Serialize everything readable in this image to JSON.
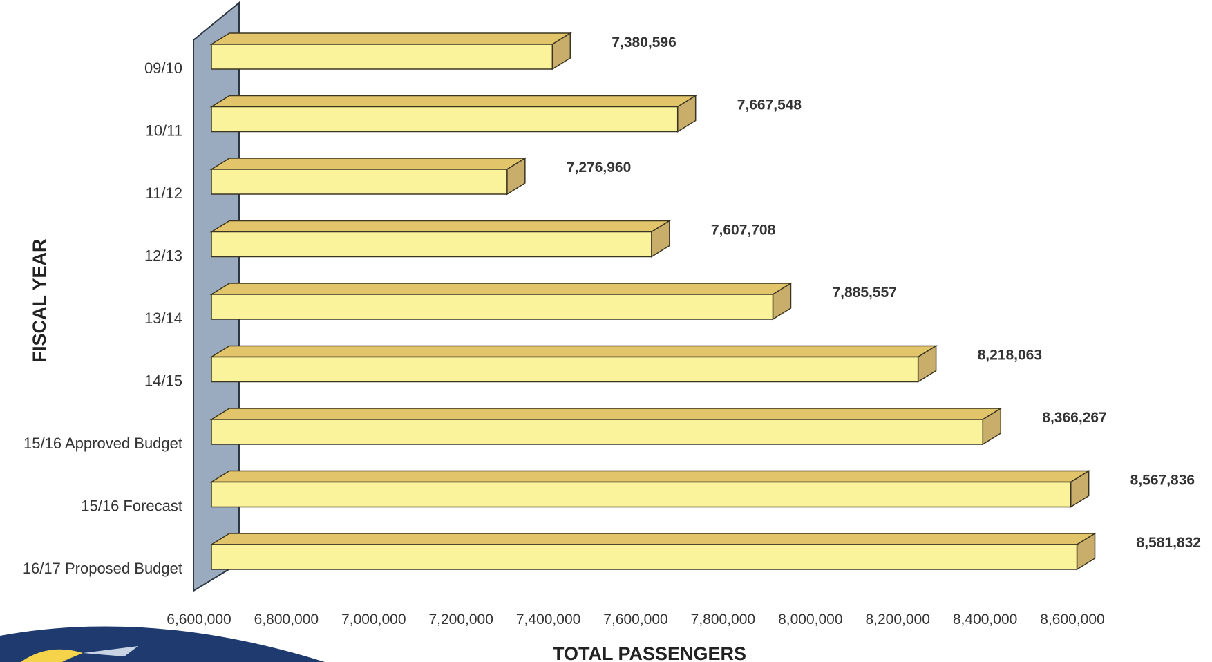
{
  "chart_data": {
    "type": "bar",
    "orientation": "horizontal",
    "title": "",
    "xlabel": "TOTAL PASSENGERS",
    "ylabel": "FISCAL YEAR",
    "xlim": [
      6600000,
      8600000
    ],
    "x_ticks": [
      "6,600,000",
      "6,800,000",
      "7,000,000",
      "7,200,000",
      "7,400,000",
      "7,600,000",
      "7,800,000",
      "8,000,000",
      "8,200,000",
      "8,400,000",
      "8,600,000"
    ],
    "tick_values": [
      6600000,
      6800000,
      7000000,
      7200000,
      7400000,
      7600000,
      7800000,
      8000000,
      8200000,
      8400000,
      8600000
    ],
    "categories": [
      "09/10",
      "10/11",
      "11/12",
      "12/13",
      "13/14",
      "14/15",
      "15/16 Approved Budget",
      "15/16 Forecast",
      "16/17 Proposed Budget"
    ],
    "values": [
      7380596,
      7667548,
      7276960,
      7607708,
      7885557,
      8218063,
      8366267,
      8567836,
      8581832
    ],
    "value_labels": [
      "7,380,596",
      "7,667,548",
      "7,276,960",
      "7,607,708",
      "7,885,557",
      "8,218,063",
      "8,366,267",
      "8,567,836",
      "8,581,832"
    ],
    "grid": false,
    "legend": "none",
    "colors": {
      "bar_front": "#fbf39c",
      "bar_top": "#e2c46a",
      "bar_side": "#c9ad6a",
      "bar_outline": "#3a3520",
      "wall": "#9aabbf",
      "wall_outline": "#2d3744"
    }
  }
}
